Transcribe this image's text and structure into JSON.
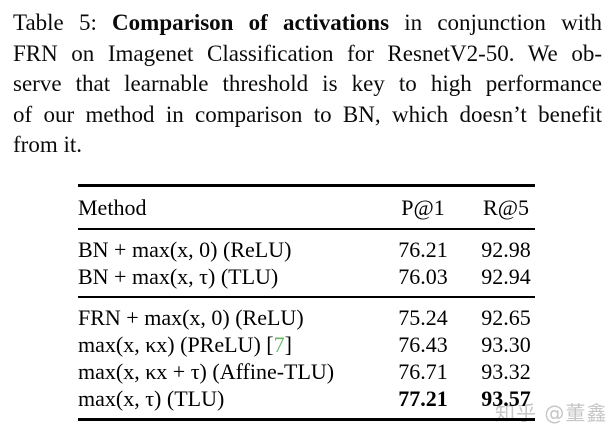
{
  "caption": {
    "label": "Table 5:",
    "bold_title": "Comparison of activations",
    "line1_rest": "in conjunction with",
    "line2": "FRN on Imagenet Classification for ResnetV2-50. We ob-",
    "line3": "serve that learnable threshold is key to high performance",
    "line4": "of our method in comparison to BN, which doesn’t benefit",
    "line5": "from it."
  },
  "table": {
    "headers": [
      "Method",
      "P@1",
      "R@5"
    ],
    "groups": [
      {
        "rows": [
          {
            "method": "BN + max(x, 0) (ReLU)",
            "p_at_1": "76.21",
            "r_at_5": "92.98"
          },
          {
            "method": "BN + max(x, τ) (TLU)",
            "p_at_1": "76.03",
            "r_at_5": "92.94"
          }
        ]
      },
      {
        "rows": [
          {
            "method": "FRN + max(x, 0) (ReLU)",
            "p_at_1": "75.24",
            "r_at_5": "92.65"
          },
          {
            "method": "max(x, κx) (PReLU)",
            "cite_open": "[",
            "cite_num": "7",
            "cite_close": "]",
            "p_at_1": "76.43",
            "r_at_5": "93.30"
          },
          {
            "method": "max(x, κx + τ) (Affine-TLU)",
            "p_at_1": "76.71",
            "r_at_5": "93.32"
          },
          {
            "method": "max(x, τ) (TLU)",
            "p_at_1": "77.21",
            "r_at_5": "93.57"
          }
        ]
      }
    ]
  },
  "watermark": {
    "text": "知乎 @董鑫"
  },
  "colors": {
    "citation_green": "#66bb6a",
    "watermark": "#c6c6c6",
    "text": "#000000",
    "background": "#ffffff"
  }
}
